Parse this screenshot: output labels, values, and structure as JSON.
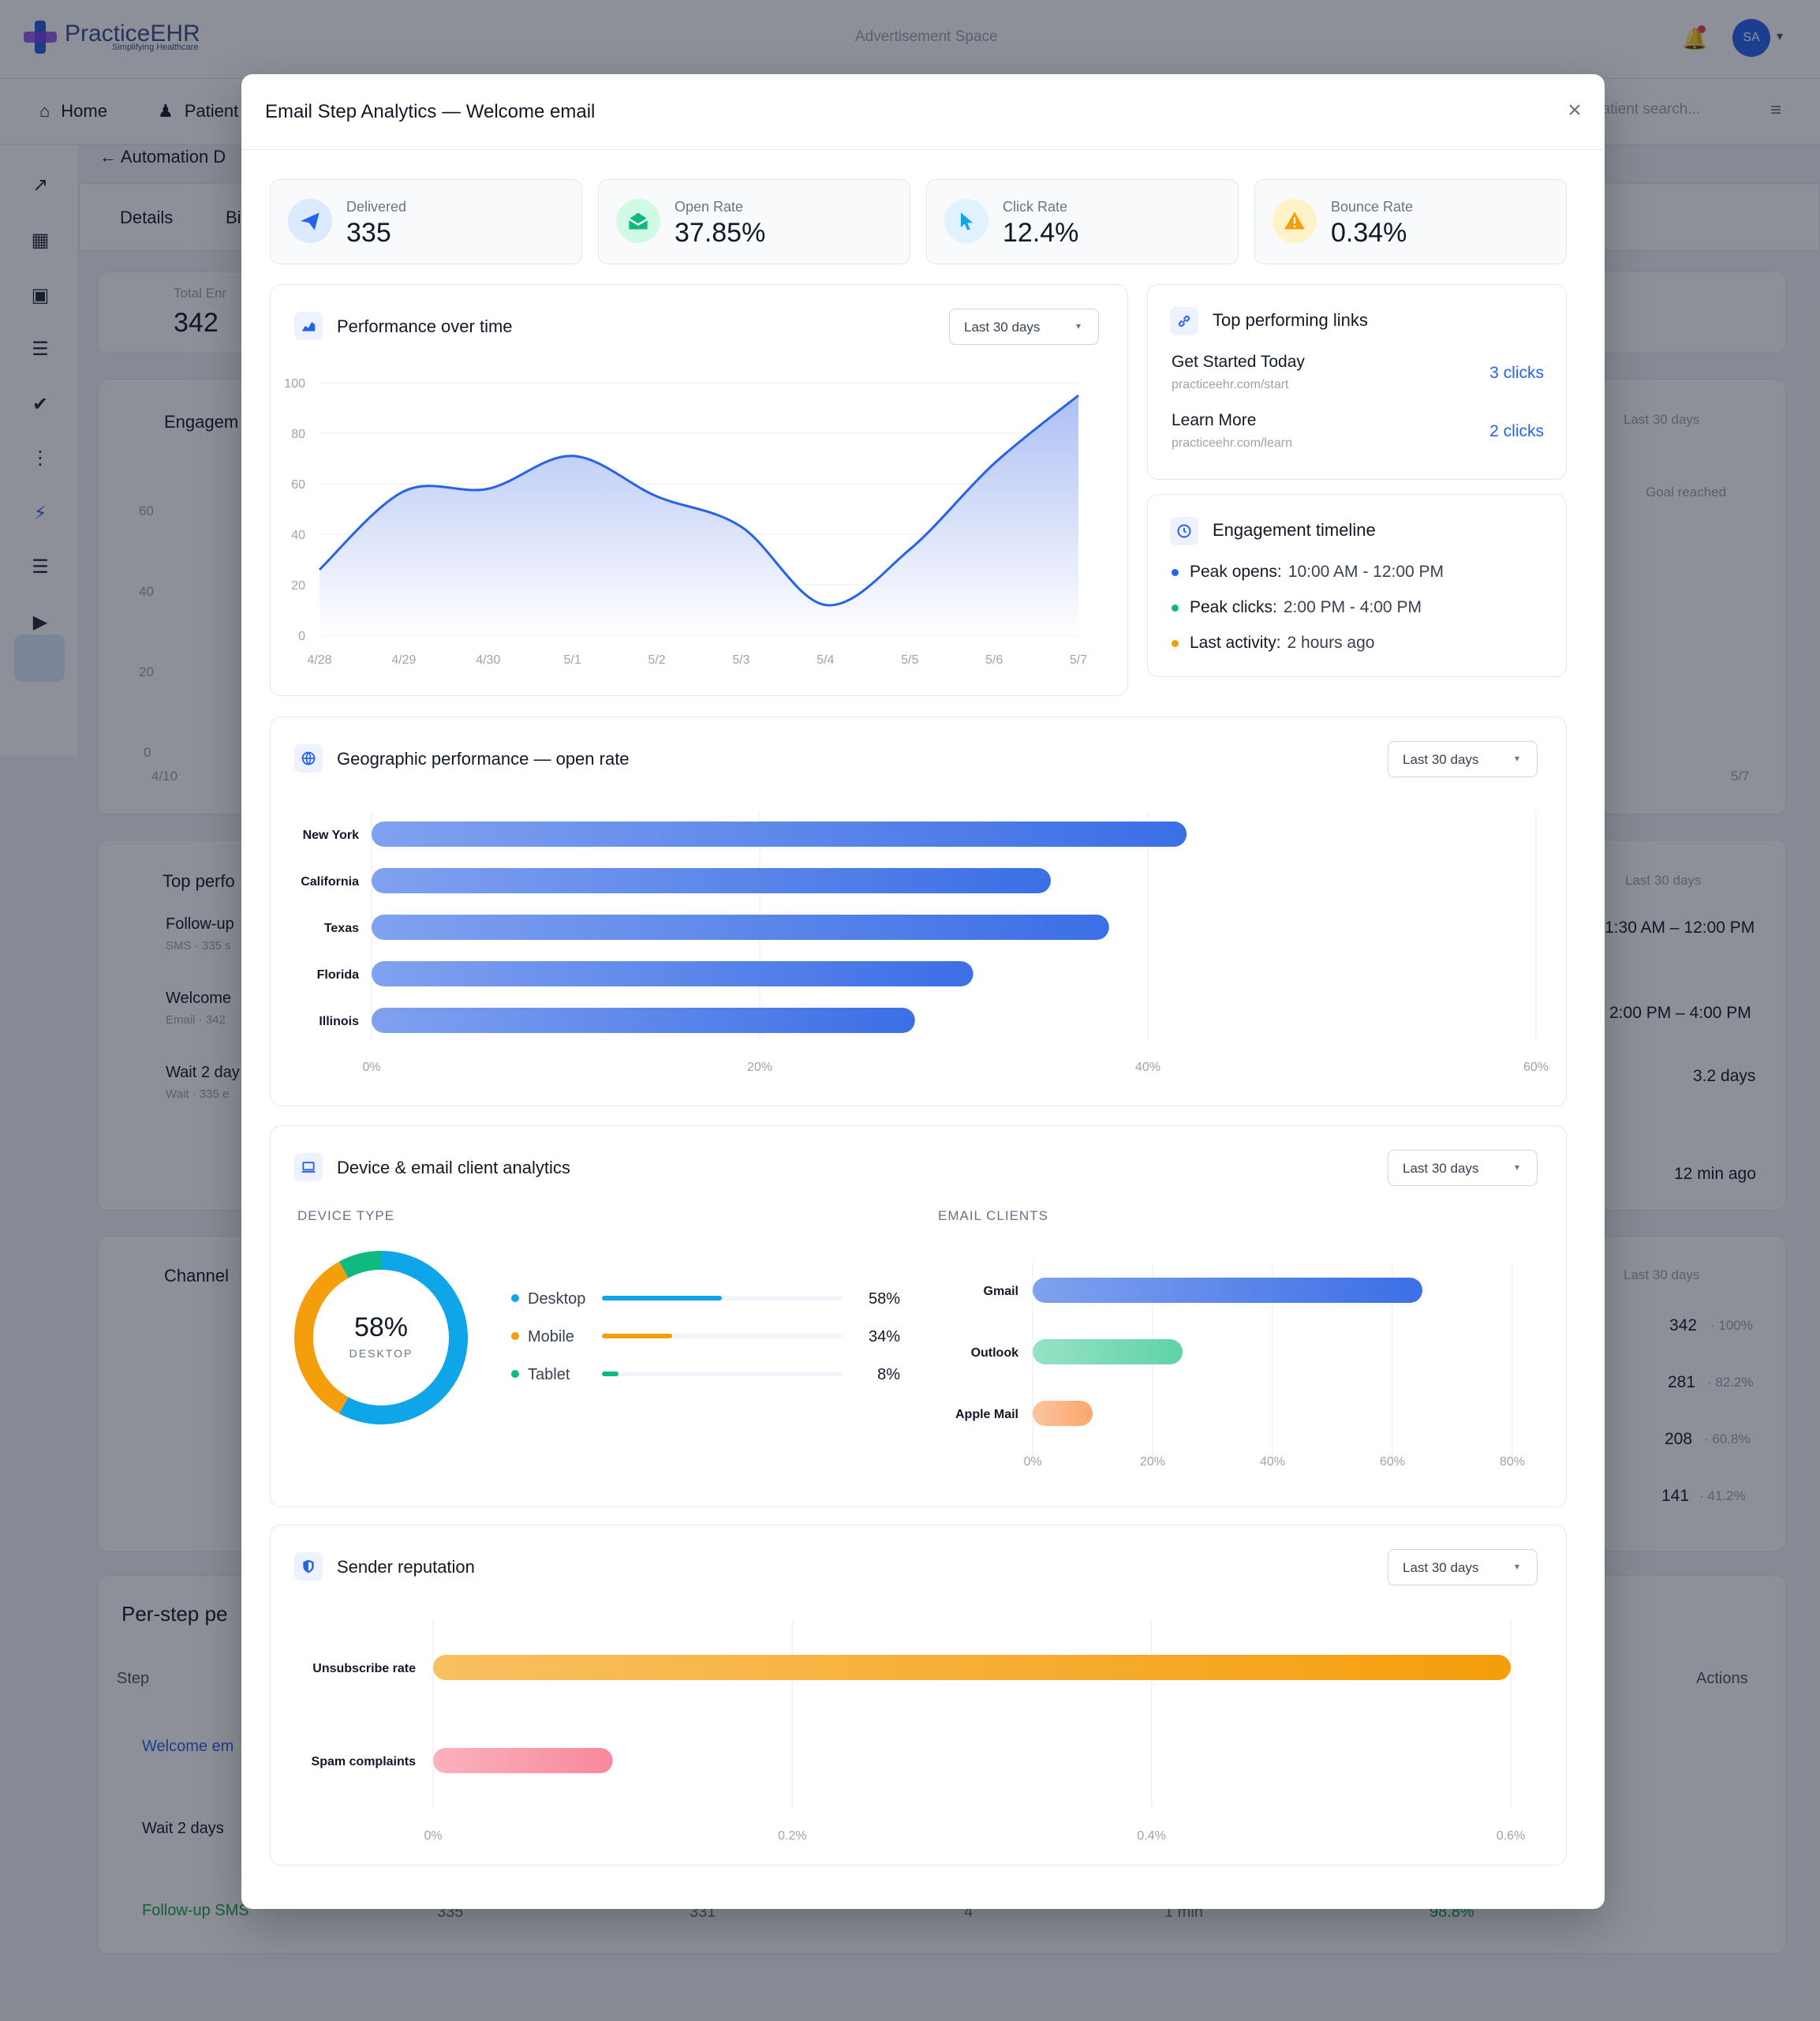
{
  "app": {
    "brand": "PracticeEHR",
    "tagline": "Simplifying Healthcare",
    "ad_text": "Advertisement Space",
    "avatar_initials": "SA",
    "nav": {
      "home": "Home",
      "patients": "Patient",
      "search_placeholder": "patient search..."
    },
    "page_back": "Automation D",
    "tabs": {
      "details": "Details",
      "b": "Bi"
    },
    "total_enrolled_label": "Total Enr",
    "total_enrolled_value": "342",
    "engagement_title": "Engagem",
    "top_perf_title": "Top perfo",
    "channel_title": "Channel",
    "per_step_title": "Per-step pe",
    "step_header": "Step",
    "actions_header": "Actions",
    "bg_items": [
      "Follow-up",
      "Welcome",
      "Wait 2 day"
    ],
    "bg_item_subs": [
      "SMS · 335 s",
      "Email · 342",
      "Wait · 335 e"
    ],
    "bg_rows": [
      "Welcome em",
      "Wait 2 days",
      "Follow-up SMS"
    ],
    "bg_right": {
      "last30": "Last 30 days",
      "goal": "Goal reached",
      "t1": "1:30 AM – 12:00 PM",
      "t2": "2:00 PM – 4:00 PM",
      "days": "3.2 days",
      "ago": "12 min ago",
      "n1": "342",
      "p1": "· 100%",
      "n2": "281",
      "p2": "· 82.2%",
      "n3": "208",
      "p3": "· 60.8%",
      "n4": "141",
      "p4": "· 41.2%"
    },
    "bg_axis": [
      "60",
      "40",
      "20",
      "0",
      "4/10",
      "5/7"
    ],
    "bg_row_nums": [
      "335",
      "331",
      "4",
      "1 min",
      "98.8%"
    ]
  },
  "modal": {
    "title": "Email Step Analytics — Welcome email",
    "close": "×",
    "stats": [
      {
        "label": "Delivered",
        "value": "335",
        "icon": "send-icon",
        "color": "#2563eb",
        "bg": "#dbeafe"
      },
      {
        "label": "Open Rate",
        "value": "37.85%",
        "icon": "envelope-open-icon",
        "color": "#10b981",
        "bg": "#d1fae5"
      },
      {
        "label": "Click Rate",
        "value": "12.4%",
        "icon": "cursor-icon",
        "color": "#0ea5e9",
        "bg": "#e0f2fe"
      },
      {
        "label": "Bounce Rate",
        "value": "0.34%",
        "icon": "warning-icon",
        "color": "#f59e0b",
        "bg": "#fef3c7"
      }
    ],
    "range_label": "Last 30 days",
    "performance": {
      "title": "Performance over time"
    },
    "top_links": {
      "title": "Top performing links",
      "items": [
        {
          "name": "Get Started Today",
          "url": "practiceehr.com/start",
          "clicks": "3 clicks"
        },
        {
          "name": "Learn More",
          "url": "practiceehr.com/learn",
          "clicks": "2 clicks"
        }
      ]
    },
    "timeline": {
      "title": "Engagement timeline",
      "items": [
        {
          "label": "Peak opens:",
          "value": "10:00 AM - 12:00 PM",
          "color": "#2563eb"
        },
        {
          "label": "Peak clicks:",
          "value": "2:00 PM - 4:00 PM",
          "color": "#10b981"
        },
        {
          "label": "Last activity:",
          "value": "2 hours ago",
          "color": "#f59e0b"
        }
      ]
    },
    "geo": {
      "title": "Geographic performance — open rate"
    },
    "device": {
      "title": "Device & email client analytics",
      "device_type_label": "DEVICE TYPE",
      "email_clients_label": "EMAIL CLIENTS",
      "donut_value": "58%",
      "donut_label": "DESKTOP"
    },
    "sender": {
      "title": "Sender reputation"
    }
  },
  "chart_data": [
    {
      "type": "area",
      "x": [
        "4/28",
        "4/29",
        "4/30",
        "5/1",
        "5/2",
        "5/3",
        "5/4",
        "5/5",
        "5/6",
        "5/7"
      ],
      "y_ticks": [
        "100",
        "80",
        "60",
        "40",
        "20",
        "0"
      ],
      "series": [
        {
          "values": [
            26,
            57,
            58,
            71,
            55,
            43,
            12,
            34,
            68,
            95
          ]
        }
      ],
      "ylim": [
        0,
        100
      ],
      "color": "#2563eb"
    },
    {
      "type": "bar",
      "orientation": "horizontal",
      "categories": [
        "New York",
        "California",
        "Texas",
        "Florida",
        "Illinois"
      ],
      "values": [
        42,
        35,
        38,
        31,
        28
      ],
      "x_ticks": [
        "0%",
        "20%",
        "40%",
        "60%"
      ],
      "xlim": [
        0,
        60
      ],
      "color": "#3b6fe6"
    },
    {
      "type": "bar",
      "orientation": "horizontal",
      "legend_style": "device",
      "categories": [
        "Desktop",
        "Mobile",
        "Tablet"
      ],
      "values": [
        58,
        34,
        8
      ],
      "value_labels": [
        "58%",
        "34%",
        "8%"
      ],
      "colors": [
        "#0ea5e9",
        "#f59e0b",
        "#10b981"
      ]
    },
    {
      "type": "bar",
      "orientation": "horizontal",
      "categories": [
        "Gmail",
        "Outlook",
        "Apple Mail"
      ],
      "values": [
        65,
        25,
        10
      ],
      "x_ticks": [
        "0%",
        "20%",
        "40%",
        "60%",
        "80%"
      ],
      "xlim": [
        0,
        80
      ],
      "colors": [
        "#3b6fe6",
        "#5fd3a7",
        "#fba66b"
      ]
    },
    {
      "type": "bar",
      "orientation": "horizontal",
      "categories": [
        "Unsubscribe rate",
        "Spam complaints"
      ],
      "values": [
        0.6,
        0.1
      ],
      "x_ticks": [
        "0%",
        "0.2%",
        "0.4%",
        "0.6%"
      ],
      "xlim": [
        0,
        0.6
      ],
      "colors": [
        "#f59e0b",
        "#f7899b"
      ]
    }
  ]
}
